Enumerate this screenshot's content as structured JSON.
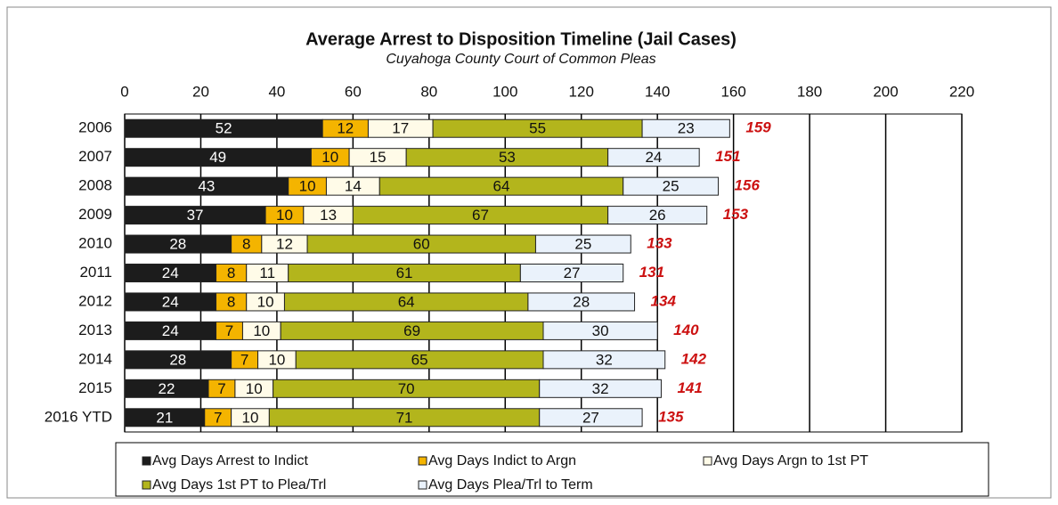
{
  "chart_data": {
    "type": "bar",
    "orientation": "horizontal",
    "stacked": true,
    "title": "Average Arrest to Disposition Timeline (Jail Cases)",
    "subtitle": "Cuyahoga County Court of Common Pleas",
    "categories": [
      "2006",
      "2007",
      "2008",
      "2009",
      "2010",
      "2011",
      "2012",
      "2013",
      "2014",
      "2015",
      "2016 YTD"
    ],
    "series": [
      {
        "name": "Avg Days Arrest to Indict",
        "color": "#1c1c1c",
        "label_color": "#ffffff",
        "values": [
          52,
          49,
          43,
          37,
          28,
          24,
          24,
          24,
          28,
          22,
          21
        ]
      },
      {
        "name": "Avg Days Indict to Argn",
        "color": "#f4b400",
        "label_color": "#111111",
        "values": [
          12,
          10,
          10,
          10,
          8,
          8,
          8,
          7,
          7,
          7,
          7
        ]
      },
      {
        "name": "Avg Days Argn to 1st PT",
        "color": "#fffbe8",
        "label_color": "#111111",
        "values": [
          17,
          15,
          14,
          13,
          12,
          11,
          10,
          10,
          10,
          10,
          10
        ]
      },
      {
        "name": "Avg Days 1st PT to Plea/Trl",
        "color": "#b3b51c",
        "label_color": "#111111",
        "values": [
          55,
          53,
          64,
          67,
          60,
          61,
          64,
          69,
          65,
          70,
          71
        ]
      },
      {
        "name": "Avg Days Plea/Trl to Term",
        "color": "#eaf2fb",
        "label_color": "#111111",
        "values": [
          23,
          24,
          25,
          26,
          25,
          27,
          28,
          30,
          32,
          32,
          27
        ]
      }
    ],
    "totals": [
      159,
      151,
      156,
      153,
      133,
      131,
      134,
      140,
      142,
      141,
      135
    ],
    "totals_color": "#cc1111",
    "xlim": [
      0,
      220
    ],
    "xticks": [
      0,
      20,
      40,
      60,
      80,
      100,
      120,
      140,
      160,
      180,
      200,
      220
    ],
    "grid": true,
    "legend": "bottom"
  }
}
